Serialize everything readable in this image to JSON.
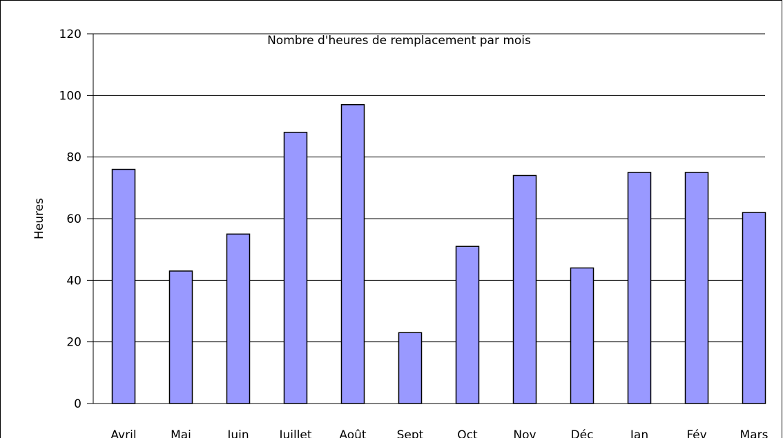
{
  "chart_data": {
    "type": "bar",
    "title": "Nombre d'heures de remplacement par mois",
    "y_label": "Heures",
    "categories": [
      "Avril",
      "Mai",
      "Juin",
      "Juillet",
      "Août",
      "Sept",
      "Oct",
      "Nov",
      "Déc",
      "Jan",
      "Fév",
      "Mars"
    ],
    "values": [
      76,
      43,
      55,
      88,
      97,
      23,
      51,
      74,
      44,
      75,
      75,
      62
    ],
    "color": "#9999ff",
    "ylim": [
      0,
      120
    ],
    "yticks": [
      0,
      20,
      40,
      60,
      80,
      100,
      120
    ],
    "grid": true
  }
}
